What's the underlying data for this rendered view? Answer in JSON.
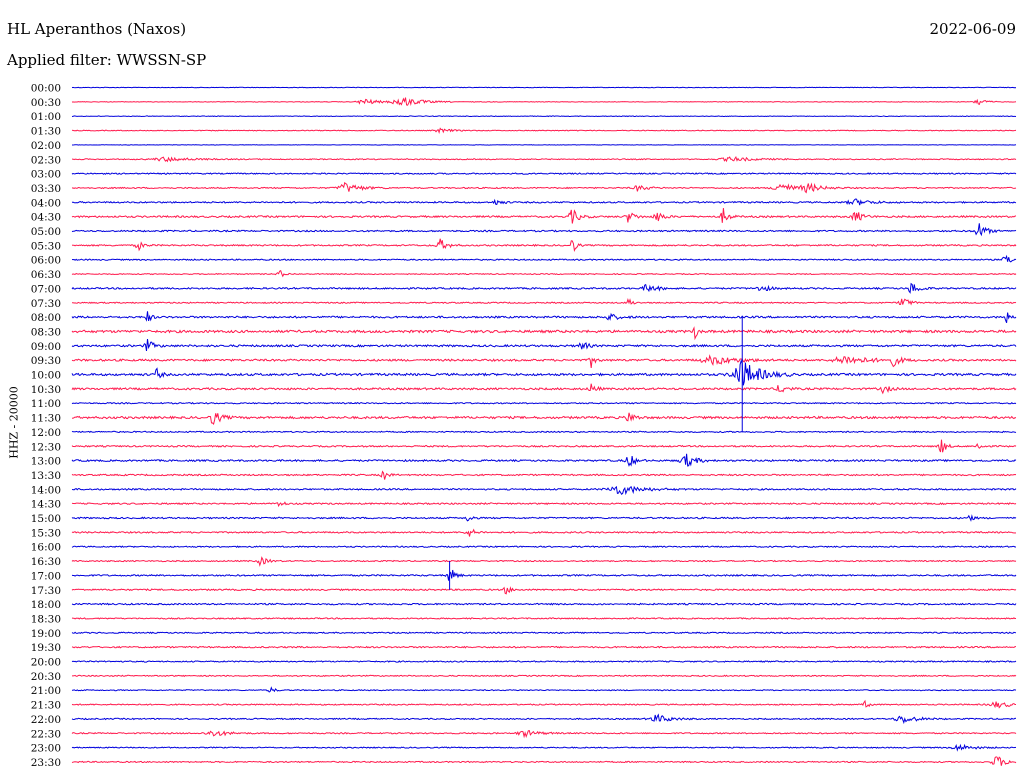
{
  "header": {
    "station": "HL Aperanthos (Naxos)",
    "date": "2022-06-09",
    "filter": "Applied filter: WWSSN-SP"
  },
  "chart_data": {
    "type": "line",
    "title": "HL Aperanthos (Naxos)",
    "subtitle": "Applied filter: WWSSN-SP",
    "date": "2022-06-09",
    "ylabel": "HHZ - 20000",
    "colors": {
      "even": "#0000dd",
      "odd": "#ff1a4d"
    },
    "rows": [
      "00:00",
      "00:30",
      "01:00",
      "01:30",
      "02:00",
      "02:30",
      "03:00",
      "03:30",
      "04:00",
      "04:30",
      "05:00",
      "05:30",
      "06:00",
      "06:30",
      "07:00",
      "07:30",
      "08:00",
      "08:30",
      "09:00",
      "09:30",
      "10:00",
      "10:30",
      "11:00",
      "11:30",
      "12:00",
      "12:30",
      "13:00",
      "13:30",
      "14:00",
      "14:30",
      "15:00",
      "15:30",
      "16:00",
      "16:30",
      "17:00",
      "17:30",
      "18:00",
      "18:30",
      "19:00",
      "19:30",
      "20:00",
      "20:30",
      "21:00",
      "21:30",
      "22:00",
      "22:30",
      "23:00",
      "23:30"
    ],
    "noise": [
      0.4,
      0.5,
      0.5,
      0.6,
      0.3,
      0.8,
      1.0,
      1.0,
      1.2,
      1.4,
      1.2,
      1.2,
      1.0,
      0.8,
      1.3,
      1.0,
      1.5,
      2.0,
      1.6,
      1.6,
      1.8,
      1.6,
      1.0,
      1.8,
      1.0,
      1.2,
      1.4,
      1.2,
      1.2,
      1.2,
      1.2,
      1.2,
      1.0,
      1.0,
      1.2,
      1.2,
      1.2,
      1.0,
      1.0,
      1.2,
      1.0,
      0.9,
      0.8,
      1.0,
      1.0,
      1.0,
      0.9,
      1.0
    ],
    "events": [
      {
        "row": 1,
        "x": 0.35,
        "amp": 5,
        "width": 0.015
      },
      {
        "row": 1,
        "x": 0.31,
        "amp": 3,
        "width": 0.012
      },
      {
        "row": 1,
        "x": 0.96,
        "amp": 4,
        "width": 0.006
      },
      {
        "row": 3,
        "x": 0.39,
        "amp": 2,
        "width": 0.01
      },
      {
        "row": 5,
        "x": 0.1,
        "amp": 2,
        "width": 0.02
      },
      {
        "row": 5,
        "x": 0.7,
        "amp": 2,
        "width": 0.02
      },
      {
        "row": 7,
        "x": 0.29,
        "amp": 5,
        "width": 0.012
      },
      {
        "row": 7,
        "x": 0.6,
        "amp": 3,
        "width": 0.008
      },
      {
        "row": 7,
        "x": 0.75,
        "amp": 6,
        "width": 0.01
      },
      {
        "row": 7,
        "x": 0.78,
        "amp": 4,
        "width": 0.012
      },
      {
        "row": 8,
        "x": 0.45,
        "amp": 3,
        "width": 0.005
      },
      {
        "row": 8,
        "x": 0.83,
        "amp": 3,
        "width": 0.012
      },
      {
        "row": 9,
        "x": 0.53,
        "amp": 7,
        "width": 0.006
      },
      {
        "row": 9,
        "x": 0.59,
        "amp": 6,
        "width": 0.005
      },
      {
        "row": 9,
        "x": 0.62,
        "amp": 6,
        "width": 0.005
      },
      {
        "row": 9,
        "x": 0.69,
        "amp": 8,
        "width": 0.004
      },
      {
        "row": 9,
        "x": 0.83,
        "amp": 6,
        "width": 0.006
      },
      {
        "row": 10,
        "x": 0.96,
        "amp": 9,
        "width": 0.006
      },
      {
        "row": 11,
        "x": 0.07,
        "amp": 5,
        "width": 0.004
      },
      {
        "row": 11,
        "x": 0.39,
        "amp": 6,
        "width": 0.006
      },
      {
        "row": 11,
        "x": 0.53,
        "amp": 9,
        "width": 0.003
      },
      {
        "row": 12,
        "x": 0.99,
        "amp": 5,
        "width": 0.006
      },
      {
        "row": 13,
        "x": 0.22,
        "amp": 4,
        "width": 0.004
      },
      {
        "row": 14,
        "x": 0.61,
        "amp": 4,
        "width": 0.008
      },
      {
        "row": 14,
        "x": 0.73,
        "amp": 4,
        "width": 0.006
      },
      {
        "row": 14,
        "x": 0.89,
        "amp": 6,
        "width": 0.006
      },
      {
        "row": 15,
        "x": 0.59,
        "amp": 5,
        "width": 0.003
      },
      {
        "row": 15,
        "x": 0.88,
        "amp": 7,
        "width": 0.005
      },
      {
        "row": 16,
        "x": 0.08,
        "amp": 6,
        "width": 0.003
      },
      {
        "row": 16,
        "x": 0.57,
        "amp": 3,
        "width": 0.008
      },
      {
        "row": 16,
        "x": 0.99,
        "amp": 10,
        "width": 0.002
      },
      {
        "row": 17,
        "x": 0.66,
        "amp": 8,
        "width": 0.002
      },
      {
        "row": 18,
        "x": 0.08,
        "amp": 6,
        "width": 0.005
      },
      {
        "row": 18,
        "x": 0.54,
        "amp": 6,
        "width": 0.004
      },
      {
        "row": 19,
        "x": 0.55,
        "amp": 7,
        "width": 0.003
      },
      {
        "row": 19,
        "x": 0.68,
        "amp": 4,
        "width": 0.02
      },
      {
        "row": 19,
        "x": 0.82,
        "amp": 4,
        "width": 0.02
      },
      {
        "row": 19,
        "x": 0.87,
        "amp": 5,
        "width": 0.006
      },
      {
        "row": 20,
        "x": 0.09,
        "amp": 6,
        "width": 0.003
      },
      {
        "row": 20,
        "x": 0.71,
        "amp": 14,
        "width": 0.015
      },
      {
        "row": 21,
        "x": 0.55,
        "amp": 5,
        "width": 0.004
      },
      {
        "row": 21,
        "x": 0.75,
        "amp": 5,
        "width": 0.005
      },
      {
        "row": 21,
        "x": 0.86,
        "amp": 4,
        "width": 0.005
      },
      {
        "row": 23,
        "x": 0.15,
        "amp": 7,
        "width": 0.006
      },
      {
        "row": 23,
        "x": 0.59,
        "amp": 5,
        "width": 0.005
      },
      {
        "row": 25,
        "x": 0.92,
        "amp": 9,
        "width": 0.004
      },
      {
        "row": 25,
        "x": 0.96,
        "amp": 5,
        "width": 0.003
      },
      {
        "row": 26,
        "x": 0.59,
        "amp": 7,
        "width": 0.005
      },
      {
        "row": 26,
        "x": 0.65,
        "amp": 7,
        "width": 0.008
      },
      {
        "row": 27,
        "x": 0.33,
        "amp": 5,
        "width": 0.004
      },
      {
        "row": 28,
        "x": 0.58,
        "amp": 5,
        "width": 0.018
      },
      {
        "row": 29,
        "x": 0.22,
        "amp": 5,
        "width": 0.003
      },
      {
        "row": 30,
        "x": 0.42,
        "amp": 5,
        "width": 0.003
      },
      {
        "row": 30,
        "x": 0.95,
        "amp": 5,
        "width": 0.003
      },
      {
        "row": 31,
        "x": 0.42,
        "amp": 5,
        "width": 0.005
      },
      {
        "row": 33,
        "x": 0.2,
        "amp": 4,
        "width": 0.006
      },
      {
        "row": 34,
        "x": 0.4,
        "amp": 10,
        "width": 0.004
      },
      {
        "row": 35,
        "x": 0.46,
        "amp": 4,
        "width": 0.004
      },
      {
        "row": 42,
        "x": 0.21,
        "amp": 3,
        "width": 0.004
      },
      {
        "row": 43,
        "x": 0.84,
        "amp": 3,
        "width": 0.004
      },
      {
        "row": 43,
        "x": 0.98,
        "amp": 3,
        "width": 0.012
      },
      {
        "row": 44,
        "x": 0.62,
        "amp": 4,
        "width": 0.012
      },
      {
        "row": 44,
        "x": 0.88,
        "amp": 4,
        "width": 0.012
      },
      {
        "row": 45,
        "x": 0.15,
        "amp": 3,
        "width": 0.012
      },
      {
        "row": 45,
        "x": 0.48,
        "amp": 3,
        "width": 0.012
      },
      {
        "row": 46,
        "x": 0.94,
        "amp": 3,
        "width": 0.012
      },
      {
        "row": 47,
        "x": 0.98,
        "amp": 6,
        "width": 0.008
      }
    ],
    "spikes": [
      {
        "row": 20,
        "x": 0.71,
        "up": 4,
        "down": 4
      },
      {
        "row": 34,
        "x": 0.4,
        "up": 1,
        "down": 1
      }
    ]
  }
}
